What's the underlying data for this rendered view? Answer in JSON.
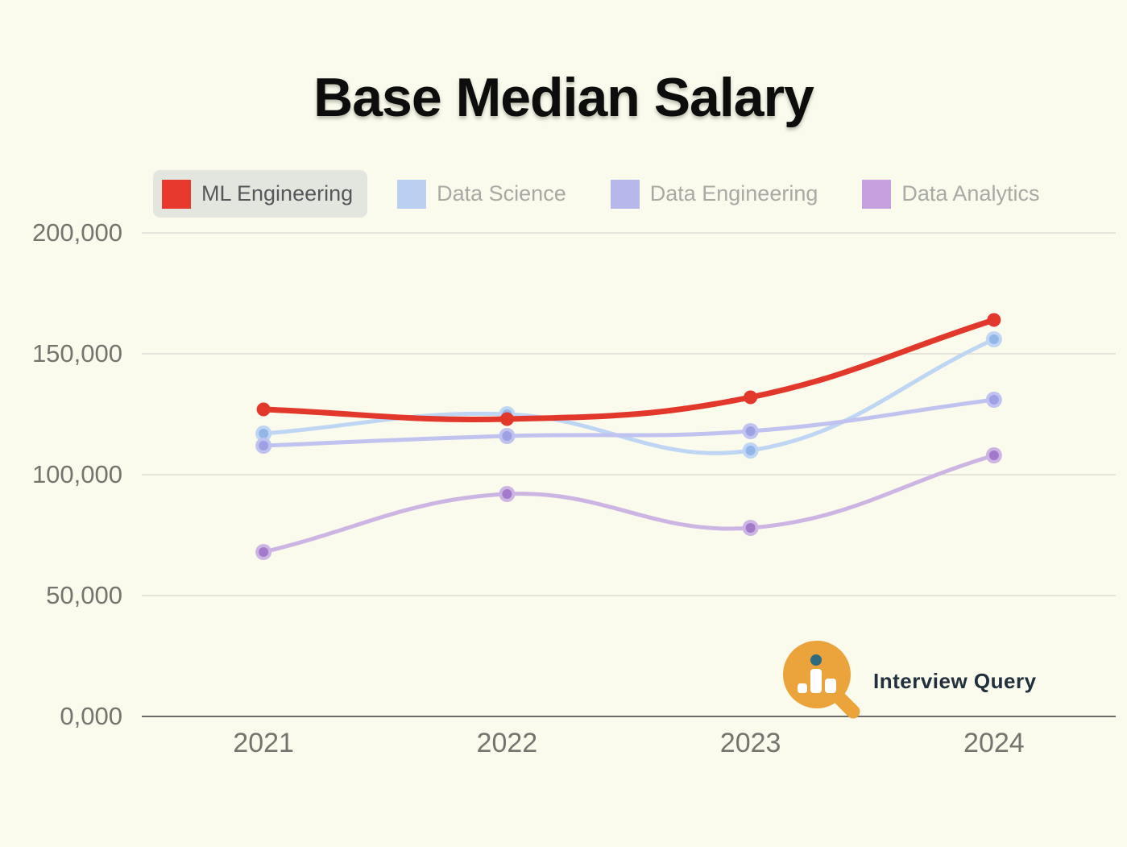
{
  "title": "Base Median Salary",
  "background": "#FAFAED",
  "chart_data": {
    "type": "line",
    "categories": [
      "2021",
      "2022",
      "2023",
      "2024"
    ],
    "series": [
      {
        "name": "ML Engineering",
        "values": [
          127000,
          123000,
          132000,
          164000
        ],
        "color": "#E2372B",
        "dot_color": "#E2372B",
        "line_width": 7
      },
      {
        "name": "Data Science",
        "values": [
          117000,
          125000,
          110000,
          156000
        ],
        "color": "#BED5F3",
        "dot_color": "#93B6E9",
        "line_width": 5
      },
      {
        "name": "Data Engineering",
        "values": [
          112000,
          116000,
          118000,
          131000
        ],
        "color": "#C0C2EF",
        "dot_color": "#9DA1E3",
        "line_width": 5
      },
      {
        "name": "Data Analytics",
        "values": [
          68000,
          92000,
          78000,
          108000
        ],
        "color": "#CDB5E3",
        "dot_color": "#A379CB",
        "line_width": 5
      }
    ],
    "xlabel": "",
    "ylabel": "",
    "ylim": [
      0,
      200000
    ],
    "yticks": [
      0,
      50000,
      100000,
      150000,
      200000
    ],
    "ytick_labels": [
      "0,000",
      "50,000",
      "100,000",
      "150,000",
      "200,000"
    ],
    "grid": true,
    "legend_position": "top",
    "curve_tension": 0.4
  },
  "legend": {
    "items": [
      {
        "label": "ML Engineering",
        "swatch_color": "#E8392E",
        "selected": true
      },
      {
        "label": "Data Science",
        "swatch_color": "#B9CFF2",
        "selected": false
      },
      {
        "label": "Data Engineering",
        "swatch_color": "#B6B8EC",
        "selected": false
      },
      {
        "label": "Data Analytics",
        "swatch_color": "#C5A2DF",
        "selected": false
      }
    ],
    "selected_bg": "#E3E6DF",
    "selected_text": "#56575A",
    "unselected_text": "#A9A9A5"
  },
  "axes": {
    "tick_color": "#76746F",
    "grid_color": "#DCDCD4",
    "axis_line_color": "#6E6C66"
  },
  "watermark": {
    "text": "Interview Query",
    "orange": "#EBA33C",
    "dot_color": "#2E6A80",
    "bar_color": "#FFFFFF",
    "text_color": "#22303E"
  }
}
